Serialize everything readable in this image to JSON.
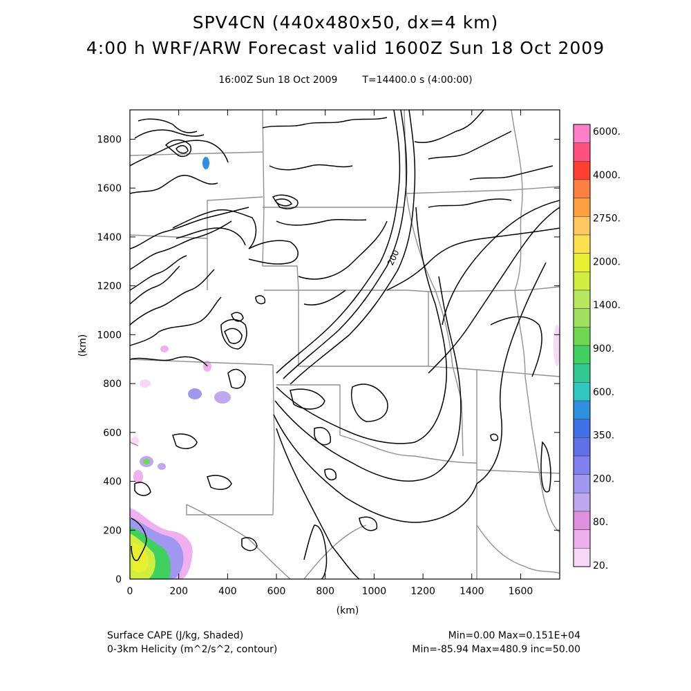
{
  "title": {
    "line1": "SPV4CN (440x480x50, dx=4 km)",
    "line2": "4:00 h WRF/ARW Forecast valid 1600Z Sun 18 Oct 2009",
    "valid_time": "16:00Z Sun 18 Oct 2009",
    "model_time": "T=14400.0 s (4:00:00)"
  },
  "axes": {
    "xlabel": "(km)",
    "ylabel": "(km)",
    "x_ticks": [
      "0",
      "200",
      "400",
      "600",
      "800",
      "1000",
      "1200",
      "1400",
      "1600"
    ],
    "y_ticks": [
      "0",
      "200",
      "400",
      "600",
      "800",
      "1000",
      "1200",
      "1400",
      "1600",
      "1800"
    ],
    "xlim": [
      0,
      1760
    ],
    "ylim": [
      0,
      1920
    ]
  },
  "colorbar": {
    "labels": [
      "6000.",
      "4000.",
      "2750.",
      "2000.",
      "1400.",
      "900.",
      "600.",
      "350.",
      "200.",
      "80.",
      "20."
    ],
    "colors": [
      "#ff80c8",
      "#ff5080",
      "#ff4030",
      "#ff8040",
      "#ffa040",
      "#ffc860",
      "#ffe050",
      "#e8f030",
      "#d0ee40",
      "#b8e860",
      "#a0e060",
      "#70d850",
      "#40d060",
      "#30c890",
      "#30c8c0",
      "#3090e0",
      "#4070e8",
      "#6070e8",
      "#8080f0",
      "#a098f0",
      "#c0a8f0",
      "#e090e0",
      "#f0b0f0",
      "#f8d8f8"
    ]
  },
  "contour_label": "200",
  "footer": {
    "left1": "Surface CAPE (J/kg, Shaded)",
    "left2": "0-3km Helicity (m^2/s^2, contour)",
    "right1": "Min=0.00 Max=0.151E+04",
    "right2": "Min=-85.94 Max=480.9 inc=50.00"
  }
}
